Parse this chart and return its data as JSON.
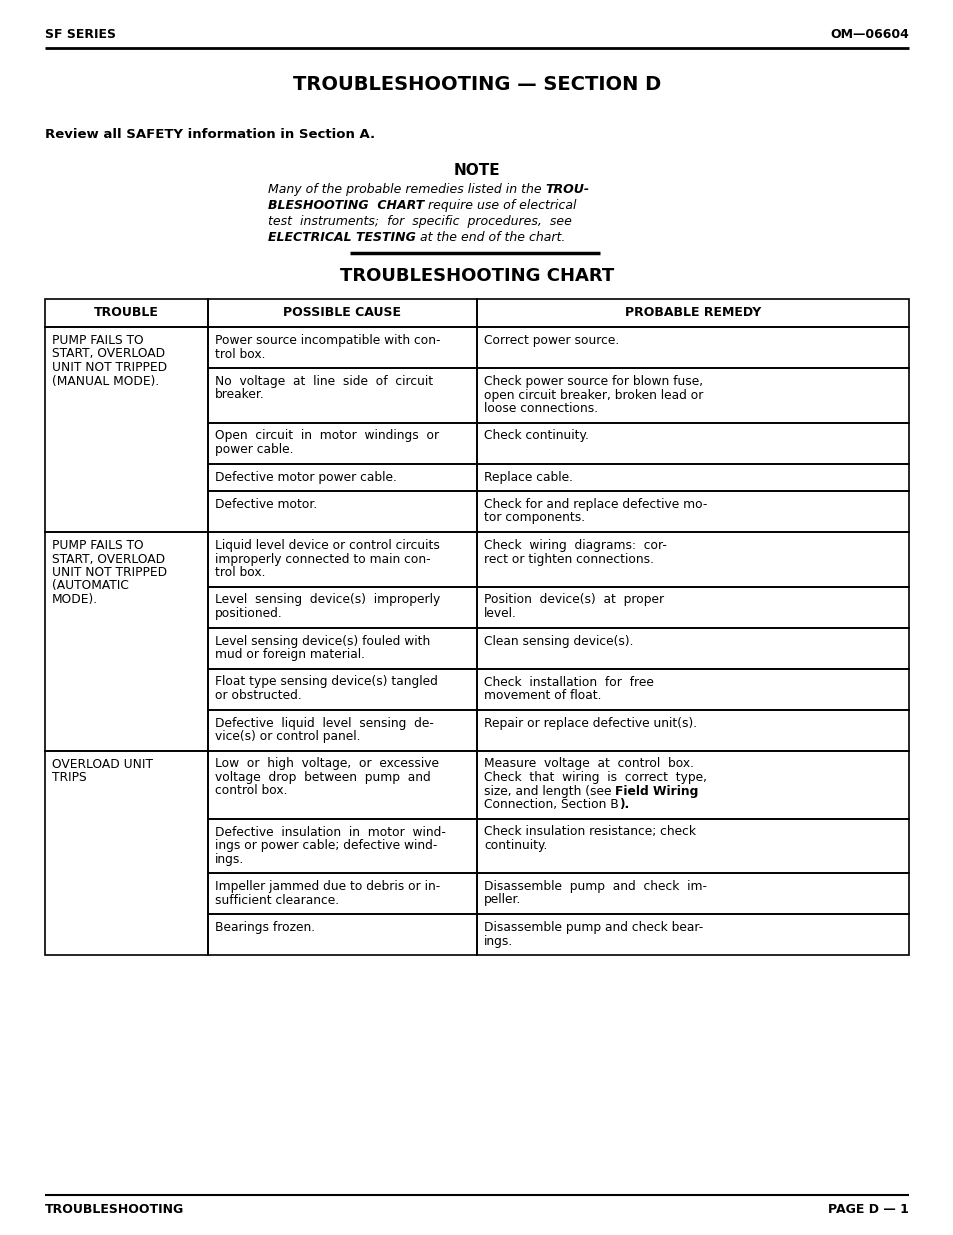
{
  "page_title": "TROUBLESHOOTING — SECTION D",
  "header_left": "SF SERIES",
  "header_right": "OM—06604",
  "safety_note": "Review all SAFETY information in Section A.",
  "note_title": "NOTE",
  "chart_title": "TROUBLESHOOTING CHART",
  "col_headers": [
    "TROUBLE",
    "POSSIBLE CAUSE",
    "PROBABLE REMEDY"
  ],
  "rows": [
    {
      "trouble": "PUMP FAILS TO\nSTART, OVERLOAD\nUNIT NOT TRIPPED\n(MANUAL MODE).",
      "causes": [
        "Power source incompatible with con-\ntrol box.",
        "No  voltage  at  line  side  of  circuit\nbreaker.",
        "Open  circuit  in  motor  windings  or\npower cable.",
        "Defective motor power cable.",
        "Defective motor."
      ],
      "remedies": [
        "Correct power source.",
        "Check power source for blown fuse,\nopen circuit breaker, broken lead or\nloose connections.",
        "Check continuity.",
        "Replace cable.",
        "Check for and replace defective mo-\ntor components."
      ]
    },
    {
      "trouble": "PUMP FAILS TO\nSTART, OVERLOAD\nUNIT NOT TRIPPED\n(AUTOMATIC\nMODE).",
      "causes": [
        "Liquid level device or control circuits\nimproperly connected to main con-\ntrol box.",
        "Level  sensing  device(s)  improperly\npositioned.",
        "Level sensing device(s) fouled with\nmud or foreign material.",
        "Float type sensing device(s) tangled\nor obstructed.",
        "Defective  liquid  level  sensing  de-\nvice(s) or control panel."
      ],
      "remedies": [
        "Check  wiring  diagrams:  cor-\nrect or tighten connections.",
        "Position  device(s)  at  proper\nlevel.",
        "Clean sensing device(s).",
        "Check  installation  for  free\nmovement of float.",
        "Repair or replace defective unit(s)."
      ]
    },
    {
      "trouble": "OVERLOAD UNIT\nTRIPS",
      "causes": [
        "Low  or  high  voltage,  or  excessive\nvoltage  drop  between  pump  and\ncontrol box.",
        "Defective  insulation  in  motor  wind-\nings or power cable; defective wind-\nings.",
        "Impeller jammed due to debris or in-\nsufficient clearance.",
        "Bearings frozen."
      ],
      "remedies": [
        "Measure  voltage  at  control  box.\nCheck  that  wiring  is  correct  type,\nsize, and length (see |Field Wiring\nConnection, Section B|).",
        "Check insulation resistance; check\ncontinuity.",
        "Disassemble  pump  and  check  im-\npeller.",
        "Disassemble pump and check bear-\nings."
      ]
    }
  ],
  "footer_left": "TROUBLESHOOTING",
  "footer_right": "PAGE D — 1",
  "bg_color": "#ffffff"
}
